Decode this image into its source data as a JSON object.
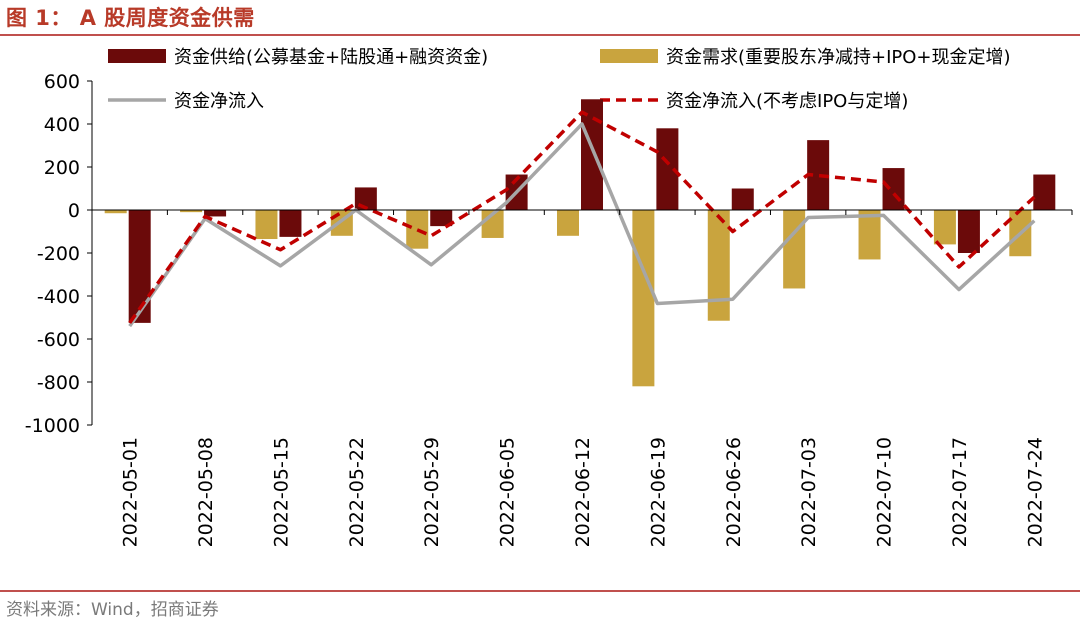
{
  "header": {
    "title": "图 1：  A 股周度资金供需"
  },
  "footer": {
    "source": "资料来源：Wind，招商证券"
  },
  "colors": {
    "supply": "#6b0a0a",
    "demand": "#c9a43e",
    "net": "#a6a6a6",
    "net_ex": "#c00000",
    "accent": "#b83a28"
  },
  "chart_data": {
    "type": "bar",
    "title": "A 股周度资金供需",
    "ylim": [
      -1000,
      600
    ],
    "yticks": [
      600,
      400,
      200,
      0,
      -200,
      -400,
      -600,
      -800,
      -1000
    ],
    "grid": false,
    "legend_position": "top",
    "categories": [
      "2022-05-01",
      "2022-05-08",
      "2022-05-15",
      "2022-05-22",
      "2022-05-29",
      "2022-06-05",
      "2022-06-12",
      "2022-06-19",
      "2022-06-26",
      "2022-07-03",
      "2022-07-10",
      "2022-07-17",
      "2022-07-24"
    ],
    "series": [
      {
        "name": "资金供给(公募基金+陆股通+融资资金)",
        "kind": "bar",
        "color": "#6b0a0a",
        "values": [
          -525,
          -30,
          -125,
          105,
          -75,
          165,
          515,
          380,
          100,
          325,
          195,
          -200,
          165
        ]
      },
      {
        "name": "资金需求(重要股东净减持+IPO+现金定增)",
        "kind": "bar",
        "color": "#c9a43e",
        "values": [
          -15,
          -10,
          -135,
          -120,
          -180,
          -130,
          -120,
          -820,
          -515,
          -365,
          -230,
          -160,
          -215
        ]
      },
      {
        "name": "资金净流入",
        "kind": "line",
        "color": "#a6a6a6",
        "values": [
          -540,
          -40,
          -260,
          0,
          -255,
          35,
          400,
          -435,
          -415,
          -35,
          -25,
          -370,
          -50
        ]
      },
      {
        "name": "资金净流入(不考虑IPO与定增)",
        "kind": "line-dashed",
        "color": "#c00000",
        "values": [
          -525,
          -30,
          -185,
          30,
          -120,
          95,
          455,
          270,
          -100,
          165,
          130,
          -265,
          60
        ]
      }
    ]
  }
}
